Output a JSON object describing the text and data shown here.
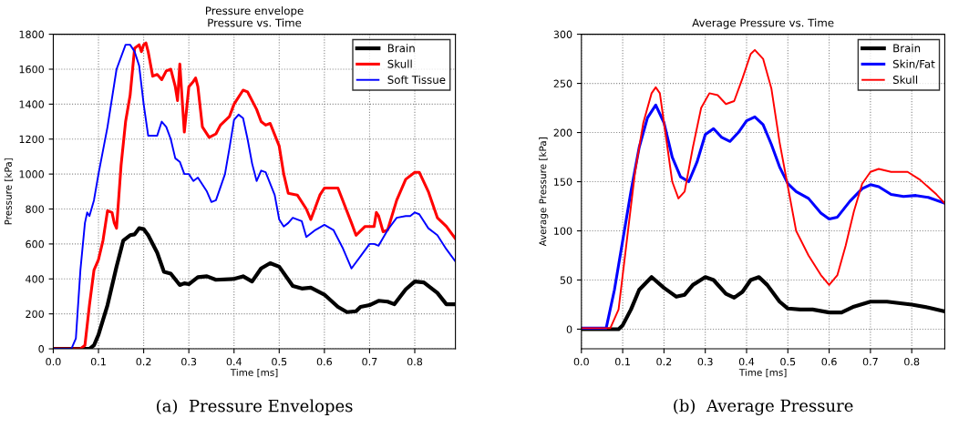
{
  "chart_data": [
    {
      "type": "line",
      "title": "Pressure envelope\nPressure vs. Time",
      "xlabel": "Time [ms]",
      "ylabel": "Pressure [kPa]",
      "annotations": [
        "(a)  Pressure Envelopes"
      ],
      "xlim": [
        0,
        0.89
      ],
      "ylim": [
        0,
        1800
      ],
      "xticks": [
        {
          "value": 0,
          "label": "0.0"
        },
        0.1,
        0.2,
        0.3,
        0.4,
        0.5,
        0.6,
        0.7,
        0.8
      ],
      "yticks": [
        0,
        200,
        400,
        600,
        800,
        1000,
        1200,
        1400,
        1600,
        1800
      ],
      "grid": true,
      "legend": "top right",
      "line_style": "solid",
      "series": [
        {
          "name": "Brain",
          "color": "#000000",
          "x": [
            0,
            0.08,
            0.09,
            0.1,
            0.12,
            0.14,
            0.155,
            0.17,
            0.18,
            0.19,
            0.2,
            0.21,
            0.23,
            0.245,
            0.26,
            0.28,
            0.29,
            0.3,
            0.32,
            0.34,
            0.36,
            0.4,
            0.42,
            0.44,
            0.46,
            0.48,
            0.5,
            0.53,
            0.55,
            0.57,
            0.6,
            0.63,
            0.65,
            0.67,
            0.68,
            0.7,
            0.72,
            0.74,
            0.755,
            0.78,
            0.8,
            0.82,
            0.85,
            0.87,
            0.89
          ],
          "values": [
            0,
            0,
            20,
            80,
            250,
            470,
            620,
            650,
            655,
            690,
            685,
            650,
            550,
            440,
            430,
            365,
            375,
            370,
            410,
            415,
            395,
            400,
            415,
            385,
            460,
            490,
            470,
            360,
            345,
            350,
            310,
            240,
            210,
            215,
            240,
            250,
            275,
            270,
            255,
            340,
            385,
            380,
            320,
            255,
            255
          ]
        },
        {
          "name": "Skull",
          "color": "#ff0000",
          "x": [
            0,
            0.06,
            0.07,
            0.08,
            0.09,
            0.1,
            0.11,
            0.12,
            0.13,
            0.135,
            0.14,
            0.15,
            0.16,
            0.17,
            0.18,
            0.19,
            0.195,
            0.2,
            0.205,
            0.21,
            0.22,
            0.23,
            0.24,
            0.25,
            0.26,
            0.27,
            0.275,
            0.28,
            0.29,
            0.3,
            0.31,
            0.315,
            0.32,
            0.33,
            0.345,
            0.36,
            0.37,
            0.39,
            0.4,
            0.42,
            0.43,
            0.45,
            0.46,
            0.47,
            0.48,
            0.5,
            0.51,
            0.52,
            0.54,
            0.56,
            0.57,
            0.59,
            0.6,
            0.61,
            0.63,
            0.66,
            0.67,
            0.69,
            0.71,
            0.715,
            0.72,
            0.73,
            0.74,
            0.76,
            0.78,
            0.8,
            0.81,
            0.83,
            0.85,
            0.87,
            0.89
          ],
          "values": [
            0,
            0,
            20,
            250,
            450,
            510,
            620,
            790,
            780,
            720,
            690,
            1050,
            1300,
            1450,
            1720,
            1740,
            1700,
            1740,
            1750,
            1700,
            1560,
            1570,
            1540,
            1590,
            1600,
            1500,
            1420,
            1630,
            1240,
            1500,
            1530,
            1550,
            1500,
            1270,
            1210,
            1230,
            1280,
            1330,
            1400,
            1480,
            1470,
            1370,
            1300,
            1280,
            1290,
            1160,
            1000,
            890,
            880,
            800,
            740,
            880,
            920,
            920,
            920,
            720,
            650,
            700,
            700,
            780,
            760,
            670,
            680,
            850,
            970,
            1010,
            1010,
            900,
            750,
            700,
            630
          ]
        },
        {
          "name": "Soft Tissue",
          "color": "#0000ff",
          "x": [
            0,
            0.04,
            0.05,
            0.06,
            0.07,
            0.075,
            0.08,
            0.09,
            0.1,
            0.12,
            0.14,
            0.16,
            0.17,
            0.18,
            0.19,
            0.2,
            0.21,
            0.23,
            0.24,
            0.25,
            0.26,
            0.27,
            0.28,
            0.29,
            0.3,
            0.31,
            0.32,
            0.34,
            0.35,
            0.36,
            0.38,
            0.39,
            0.4,
            0.41,
            0.42,
            0.43,
            0.44,
            0.45,
            0.46,
            0.47,
            0.49,
            0.5,
            0.51,
            0.52,
            0.53,
            0.55,
            0.56,
            0.58,
            0.6,
            0.62,
            0.64,
            0.66,
            0.68,
            0.7,
            0.71,
            0.72,
            0.74,
            0.76,
            0.78,
            0.79,
            0.8,
            0.81,
            0.83,
            0.85,
            0.87,
            0.89
          ],
          "values": [
            0,
            0,
            60,
            450,
            720,
            780,
            760,
            850,
            1000,
            1270,
            1600,
            1740,
            1740,
            1700,
            1620,
            1400,
            1220,
            1220,
            1300,
            1270,
            1200,
            1090,
            1070,
            1000,
            1000,
            960,
            980,
            900,
            840,
            850,
            1000,
            1150,
            1310,
            1340,
            1320,
            1200,
            1060,
            960,
            1020,
            1010,
            880,
            740,
            700,
            720,
            750,
            730,
            640,
            680,
            710,
            680,
            580,
            460,
            530,
            600,
            600,
            590,
            680,
            750,
            760,
            760,
            780,
            770,
            690,
            650,
            570,
            500
          ]
        }
      ]
    },
    {
      "type": "line",
      "title": "Average Pressure vs. Time",
      "xlabel": "Time [ms]",
      "ylabel": "Average Pressure [kPa]",
      "annotations": [
        "(b)  Average Pressure"
      ],
      "xlim": [
        0,
        0.88
      ],
      "ylim": [
        -20,
        300
      ],
      "xticks": [
        {
          "value": 0,
          "label": "0.0"
        },
        0.1,
        0.2,
        0.3,
        0.4,
        0.5,
        0.6,
        0.7,
        0.8
      ],
      "yticks": [
        0,
        50,
        100,
        150,
        200,
        250,
        300
      ],
      "grid": true,
      "legend": "top right",
      "line_style": "solid",
      "series": [
        {
          "name": "Brain",
          "color": "#000000",
          "x": [
            0,
            0.09,
            0.1,
            0.12,
            0.14,
            0.17,
            0.2,
            0.23,
            0.25,
            0.27,
            0.3,
            0.32,
            0.35,
            0.37,
            0.39,
            0.41,
            0.43,
            0.45,
            0.48,
            0.5,
            0.53,
            0.56,
            0.6,
            0.63,
            0.66,
            0.7,
            0.74,
            0.8,
            0.84,
            0.88
          ],
          "values": [
            0,
            0,
            4,
            20,
            40,
            53,
            42,
            33,
            35,
            45,
            53,
            50,
            36,
            32,
            38,
            50,
            53,
            45,
            28,
            21,
            20,
            20,
            17,
            17,
            23,
            28,
            28,
            25,
            22,
            18
          ]
        },
        {
          "name": "Skin/Fat",
          "color": "#0000ff",
          "x": [
            0,
            0.06,
            0.08,
            0.1,
            0.12,
            0.14,
            0.16,
            0.18,
            0.2,
            0.22,
            0.24,
            0.26,
            0.28,
            0.3,
            0.32,
            0.34,
            0.36,
            0.38,
            0.4,
            0.42,
            0.44,
            0.46,
            0.48,
            0.5,
            0.52,
            0.55,
            0.58,
            0.6,
            0.62,
            0.65,
            0.68,
            0.7,
            0.72,
            0.75,
            0.78,
            0.81,
            0.84,
            0.88
          ],
          "values": [
            1,
            1,
            40,
            90,
            140,
            185,
            215,
            228,
            210,
            175,
            155,
            150,
            170,
            198,
            204,
            195,
            191,
            200,
            212,
            216,
            208,
            188,
            165,
            148,
            140,
            133,
            118,
            112,
            114,
            130,
            143,
            147,
            145,
            137,
            135,
            136,
            134,
            128
          ]
        },
        {
          "name": "Skull",
          "color": "#ff0000",
          "x": [
            0,
            0.07,
            0.09,
            0.11,
            0.13,
            0.15,
            0.17,
            0.18,
            0.19,
            0.2,
            0.22,
            0.235,
            0.25,
            0.27,
            0.29,
            0.31,
            0.33,
            0.35,
            0.37,
            0.39,
            0.41,
            0.42,
            0.44,
            0.46,
            0.48,
            0.5,
            0.52,
            0.55,
            0.58,
            0.6,
            0.62,
            0.64,
            0.66,
            0.68,
            0.7,
            0.72,
            0.75,
            0.79,
            0.82,
            0.86,
            0.88
          ],
          "values": [
            1,
            1,
            20,
            90,
            160,
            210,
            240,
            246,
            240,
            210,
            150,
            133,
            140,
            185,
            225,
            240,
            238,
            229,
            232,
            255,
            280,
            284,
            275,
            245,
            190,
            145,
            100,
            75,
            55,
            45,
            55,
            85,
            120,
            148,
            160,
            163,
            160,
            160,
            152,
            137,
            128
          ]
        }
      ]
    }
  ]
}
